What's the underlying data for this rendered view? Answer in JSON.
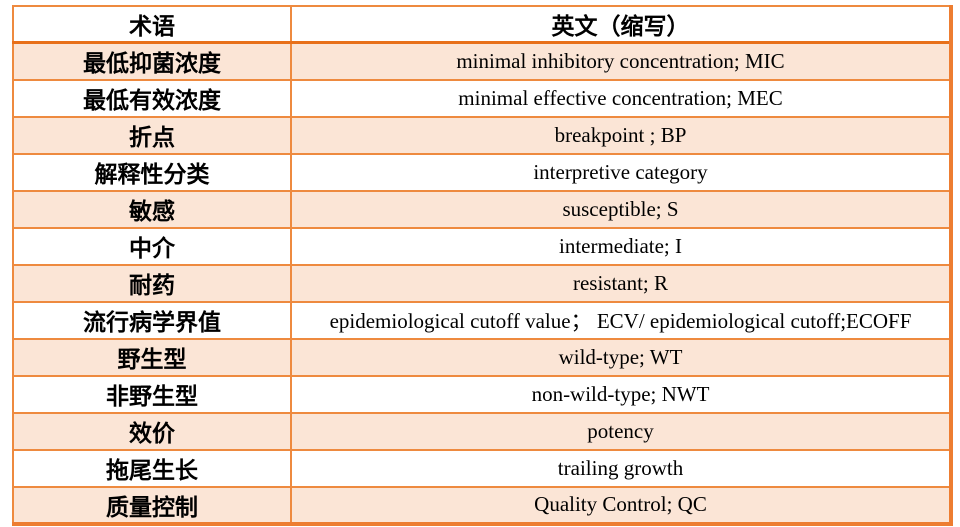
{
  "table": {
    "headers": {
      "term": "术语",
      "english": "英文（缩写）"
    },
    "rows": [
      {
        "term": "最低抑菌浓度",
        "english": "minimal inhibitory concentration; MIC"
      },
      {
        "term": "最低有效浓度",
        "english": "minimal effective concentration; MEC"
      },
      {
        "term": "折点",
        "english": "breakpoint ; BP"
      },
      {
        "term": "解释性分类",
        "english": "interpretive category"
      },
      {
        "term": "敏感",
        "english": "susceptible; S"
      },
      {
        "term": "中介",
        "english": "intermediate; I"
      },
      {
        "term": "耐药",
        "english": "resistant; R"
      },
      {
        "term": "流行病学界值",
        "english": "epidemiological cutoff value； ECV/ epidemiological cutoff;ECOFF"
      },
      {
        "term": "野生型",
        "english": "wild-type; WT"
      },
      {
        "term": "非野生型",
        "english": "non-wild-type; NWT"
      },
      {
        "term": "效价",
        "english": "potency"
      },
      {
        "term": "拖尾生长",
        "english": "trailing growth"
      },
      {
        "term": "质量控制",
        "english": "Quality Control; QC"
      }
    ],
    "colors": {
      "border": "#ED7D31",
      "alt_row_fill": "#FBE5D6",
      "text": "#000000",
      "background": "#FFFFFF"
    }
  }
}
